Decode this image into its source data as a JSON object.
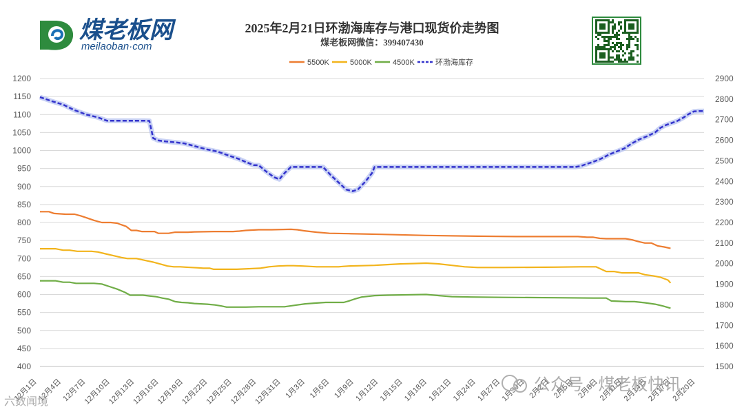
{
  "header": {
    "logo_text": "煤老板网",
    "logo_domain": "meilaoban·com",
    "title": "2025年2月21日环渤海库存与港口现货价走势图",
    "subtitle": "煤老板网微信：399407430"
  },
  "watermark": {
    "wechat": "公众号 · 煤老板快讯",
    "corner": "六数闻境"
  },
  "colors": {
    "s5500": "#ED7D31",
    "s5000": "#F2B41C",
    "s4500": "#70AD47",
    "inventory": "#3333CC",
    "grid": "#D9D9D9",
    "axis_text": "#595959",
    "logo_green": "#2E7D32",
    "logo_blue": "#1A4F8C"
  },
  "chart_data": {
    "type": "line",
    "title": "",
    "xlabel": "",
    "ylabel": "",
    "left_axis": {
      "min": 400,
      "max": 1200,
      "step": 50
    },
    "right_axis": {
      "min": 1500,
      "max": 2900,
      "step": 100
    },
    "grid": true,
    "legend_position": "top-center",
    "x_labels": [
      "12月1日",
      "12月4日",
      "12月7日",
      "12月10日",
      "12月13日",
      "12月16日",
      "12月19日",
      "12月22日",
      "12月25日",
      "12月28日",
      "12月31日",
      "1月3日",
      "1月6日",
      "1月9日",
      "1月12日",
      "1月15日",
      "1月18日",
      "1月21日",
      "1月24日",
      "1月27日",
      "1月30日",
      "2月2日",
      "2月5日",
      "2月8日",
      "2月11日",
      "2月14日",
      "2月17日",
      "2月20日"
    ],
    "series": [
      {
        "name": "5500K",
        "axis": "left",
        "style": "solid",
        "color_key": "s5500",
        "points": [
          [
            0,
            830
          ],
          [
            7,
            830
          ],
          [
            11,
            825
          ],
          [
            20,
            823
          ],
          [
            27,
            823
          ],
          [
            32,
            818
          ],
          [
            37,
            812
          ],
          [
            42,
            806
          ],
          [
            48,
            800
          ],
          [
            55,
            800
          ],
          [
            60,
            798
          ],
          [
            63,
            794
          ],
          [
            67,
            789
          ],
          [
            71,
            778
          ],
          [
            75,
            778
          ],
          [
            79,
            775
          ],
          [
            84,
            775
          ],
          [
            89,
            775
          ],
          [
            92,
            770
          ],
          [
            100,
            770
          ],
          [
            105,
            773
          ],
          [
            115,
            773
          ],
          [
            120,
            774
          ],
          [
            135,
            775
          ],
          [
            150,
            775
          ],
          [
            155,
            776
          ],
          [
            160,
            778
          ],
          [
            170,
            780
          ],
          [
            180,
            780
          ],
          [
            195,
            781
          ],
          [
            200,
            780
          ],
          [
            205,
            777
          ],
          [
            215,
            773
          ],
          [
            225,
            770
          ],
          [
            240,
            769
          ],
          [
            265,
            767
          ],
          [
            300,
            764
          ],
          [
            340,
            762
          ],
          [
            370,
            761
          ],
          [
            400,
            761
          ],
          [
            418,
            761
          ],
          [
            425,
            759
          ],
          [
            430,
            759
          ],
          [
            435,
            756
          ],
          [
            440,
            755
          ],
          [
            455,
            755
          ],
          [
            460,
            752
          ],
          [
            465,
            747
          ],
          [
            470,
            743
          ],
          [
            475,
            743
          ],
          [
            480,
            735
          ],
          [
            485,
            732
          ],
          [
            490,
            728
          ]
        ]
      },
      {
        "name": "5000K",
        "axis": "left",
        "style": "solid",
        "color_key": "s5000",
        "points": [
          [
            0,
            727
          ],
          [
            12,
            727
          ],
          [
            18,
            723
          ],
          [
            23,
            723
          ],
          [
            29,
            720
          ],
          [
            40,
            720
          ],
          [
            45,
            718
          ],
          [
            51,
            713
          ],
          [
            57,
            708
          ],
          [
            63,
            703
          ],
          [
            68,
            700
          ],
          [
            75,
            700
          ],
          [
            80,
            696
          ],
          [
            84,
            693
          ],
          [
            88,
            690
          ],
          [
            92,
            686
          ],
          [
            95,
            683
          ],
          [
            99,
            679
          ],
          [
            104,
            677
          ],
          [
            109,
            677
          ],
          [
            113,
            676
          ],
          [
            118,
            675
          ],
          [
            123,
            674
          ],
          [
            127,
            673
          ],
          [
            132,
            673
          ],
          [
            135,
            670
          ],
          [
            140,
            670
          ],
          [
            147,
            670
          ],
          [
            153,
            670
          ],
          [
            159,
            671
          ],
          [
            165,
            672
          ],
          [
            171,
            673
          ],
          [
            178,
            677
          ],
          [
            185,
            679
          ],
          [
            192,
            680
          ],
          [
            197,
            680
          ],
          [
            204,
            679
          ],
          [
            209,
            678
          ],
          [
            215,
            677
          ],
          [
            223,
            677
          ],
          [
            228,
            677
          ],
          [
            232,
            677
          ],
          [
            236,
            678
          ],
          [
            240,
            679
          ],
          [
            250,
            680
          ],
          [
            260,
            681
          ],
          [
            270,
            683
          ],
          [
            280,
            685
          ],
          [
            290,
            686
          ],
          [
            300,
            687
          ],
          [
            310,
            685
          ],
          [
            320,
            681
          ],
          [
            330,
            677
          ],
          [
            340,
            675
          ],
          [
            360,
            675
          ],
          [
            400,
            676
          ],
          [
            420,
            677
          ],
          [
            432,
            677
          ],
          [
            440,
            664
          ],
          [
            446,
            664
          ],
          [
            452,
            660
          ],
          [
            465,
            660
          ],
          [
            470,
            655
          ],
          [
            476,
            652
          ],
          [
            482,
            648
          ],
          [
            488,
            640
          ],
          [
            490,
            632
          ]
        ]
      },
      {
        "name": "4500K",
        "axis": "left",
        "style": "solid",
        "color_key": "s4500",
        "points": [
          [
            0,
            638
          ],
          [
            12,
            638
          ],
          [
            18,
            634
          ],
          [
            23,
            634
          ],
          [
            28,
            631
          ],
          [
            36,
            631
          ],
          [
            42,
            631
          ],
          [
            48,
            629
          ],
          [
            54,
            622
          ],
          [
            60,
            615
          ],
          [
            66,
            606
          ],
          [
            70,
            598
          ],
          [
            80,
            598
          ],
          [
            85,
            596
          ],
          [
            90,
            594
          ],
          [
            95,
            590
          ],
          [
            100,
            587
          ],
          [
            105,
            580
          ],
          [
            110,
            578
          ],
          [
            115,
            577
          ],
          [
            120,
            575
          ],
          [
            130,
            573
          ],
          [
            136,
            571
          ],
          [
            141,
            568
          ],
          [
            145,
            565
          ],
          [
            150,
            565
          ],
          [
            160,
            565
          ],
          [
            170,
            566
          ],
          [
            180,
            566
          ],
          [
            190,
            566
          ],
          [
            198,
            570
          ],
          [
            206,
            574
          ],
          [
            214,
            576
          ],
          [
            222,
            578
          ],
          [
            230,
            578
          ],
          [
            236,
            578
          ],
          [
            240,
            582
          ],
          [
            245,
            588
          ],
          [
            250,
            593
          ],
          [
            260,
            597
          ],
          [
            270,
            598
          ],
          [
            285,
            599
          ],
          [
            300,
            600
          ],
          [
            310,
            597
          ],
          [
            320,
            594
          ],
          [
            335,
            593
          ],
          [
            360,
            592
          ],
          [
            400,
            591
          ],
          [
            430,
            590
          ],
          [
            440,
            590
          ],
          [
            444,
            582
          ],
          [
            450,
            581
          ],
          [
            455,
            580
          ],
          [
            462,
            580
          ],
          [
            470,
            577
          ],
          [
            478,
            573
          ],
          [
            484,
            568
          ],
          [
            490,
            562
          ]
        ]
      },
      {
        "name": "环渤海库存",
        "axis": "right",
        "style": "dashed",
        "color_key": "inventory",
        "points": [
          [
            0,
            2810
          ],
          [
            9,
            2790
          ],
          [
            18,
            2773
          ],
          [
            27,
            2746
          ],
          [
            36,
            2725
          ],
          [
            45,
            2711
          ],
          [
            52,
            2695
          ],
          [
            60,
            2695
          ],
          [
            68,
            2695
          ],
          [
            75,
            2695
          ],
          [
            81,
            2695
          ],
          [
            85,
            2694
          ],
          [
            88,
            2610
          ],
          [
            92,
            2599
          ],
          [
            98,
            2594
          ],
          [
            105,
            2590
          ],
          [
            112,
            2585
          ],
          [
            118,
            2575
          ],
          [
            125,
            2563
          ],
          [
            130,
            2555
          ],
          [
            138,
            2545
          ],
          [
            146,
            2527
          ],
          [
            154,
            2510
          ],
          [
            160,
            2494
          ],
          [
            166,
            2479
          ],
          [
            170,
            2478
          ],
          [
            176,
            2447
          ],
          [
            182,
            2420
          ],
          [
            186,
            2410
          ],
          [
            190,
            2440
          ],
          [
            195,
            2470
          ],
          [
            200,
            2470
          ],
          [
            210,
            2470
          ],
          [
            220,
            2470
          ],
          [
            226,
            2430
          ],
          [
            232,
            2395
          ],
          [
            238,
            2360
          ],
          [
            243,
            2352
          ],
          [
            247,
            2360
          ],
          [
            253,
            2400
          ],
          [
            258,
            2440
          ],
          [
            260,
            2470
          ],
          [
            270,
            2470
          ],
          [
            280,
            2470
          ],
          [
            300,
            2470
          ],
          [
            330,
            2470
          ],
          [
            360,
            2470
          ],
          [
            380,
            2470
          ],
          [
            400,
            2470
          ],
          [
            416,
            2470
          ],
          [
            420,
            2474
          ],
          [
            425,
            2485
          ],
          [
            430,
            2495
          ],
          [
            436,
            2510
          ],
          [
            442,
            2530
          ],
          [
            448,
            2545
          ],
          [
            454,
            2560
          ],
          [
            460,
            2585
          ],
          [
            466,
            2605
          ],
          [
            472,
            2620
          ],
          [
            478,
            2638
          ],
          [
            482,
            2660
          ],
          [
            486,
            2673
          ],
          [
            490,
            2682
          ],
          [
            495,
            2693
          ],
          [
            500,
            2710
          ],
          [
            504,
            2727
          ],
          [
            508,
            2740
          ],
          [
            512,
            2742
          ],
          [
            516,
            2742
          ]
        ]
      }
    ]
  }
}
